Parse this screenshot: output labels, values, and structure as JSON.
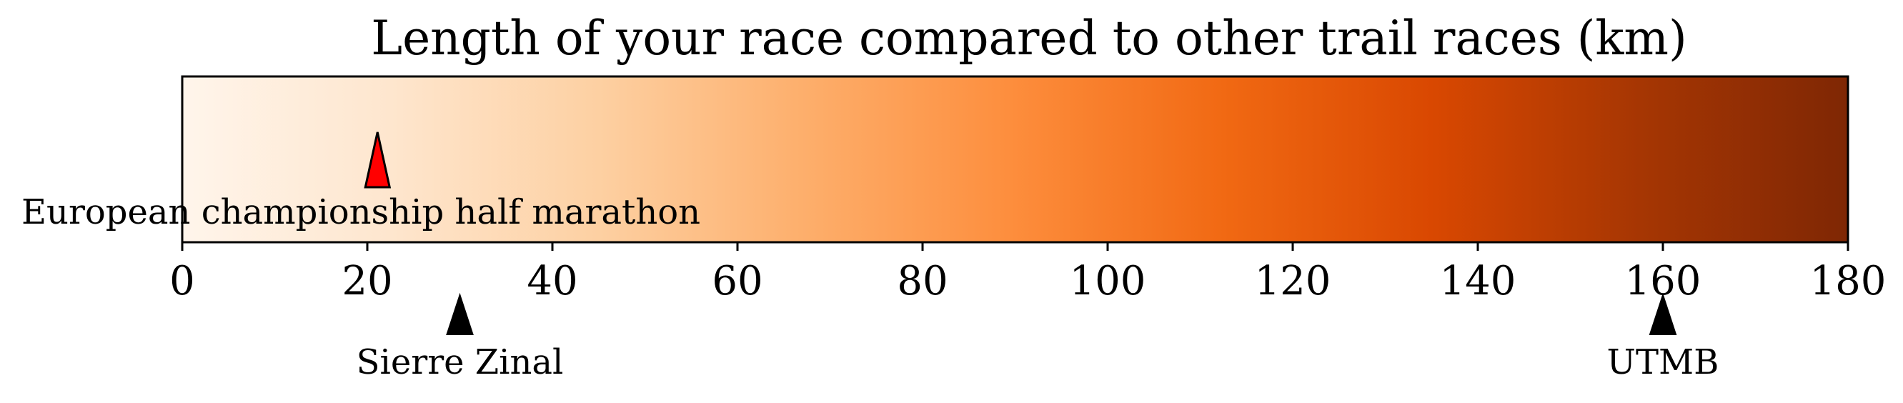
{
  "chart_data": {
    "type": "colorbar",
    "title": "Length of your race compared to other trail races (km)",
    "xlabel": "",
    "ylabel": "",
    "xlim": [
      0,
      180
    ],
    "ticks": [
      0,
      20,
      40,
      60,
      80,
      100,
      120,
      140,
      160,
      180
    ],
    "tick_labels": [
      "0",
      "20",
      "40",
      "60",
      "80",
      "100",
      "120",
      "140",
      "160",
      "180"
    ],
    "colormap": "Oranges",
    "colormap_stops": [
      "#fff5eb",
      "#fee6ce",
      "#fdd0a2",
      "#fdae6b",
      "#fd8d3c",
      "#f16913",
      "#d94801",
      "#a63603",
      "#7f2704"
    ],
    "highlight": {
      "label": "European championship half marathon",
      "value": 21.1,
      "color": "#ff0000",
      "position": "inside-bar"
    },
    "references": [
      {
        "label": "Sierre Zinal",
        "value": 30,
        "color": "#000000",
        "position": "below-axis"
      },
      {
        "label": "UTMB",
        "value": 160,
        "color": "#000000",
        "position": "below-axis"
      }
    ]
  }
}
